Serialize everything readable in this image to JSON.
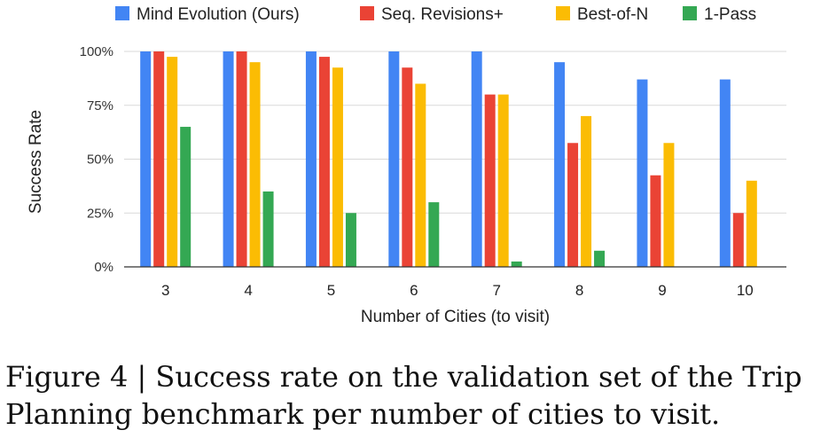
{
  "chart_data": {
    "type": "bar",
    "categories": [
      "3",
      "4",
      "5",
      "6",
      "7",
      "8",
      "9",
      "10"
    ],
    "series": [
      {
        "name": "Mind Evolution (Ours)",
        "color": "#4285F4",
        "values": [
          100,
          100,
          100,
          100,
          100,
          95,
          87,
          87
        ]
      },
      {
        "name": "Seq. Revisions+",
        "color": "#EA4335",
        "values": [
          100,
          100,
          97.5,
          92.5,
          80,
          57.5,
          42.5,
          25
        ]
      },
      {
        "name": "Best-of-N",
        "color": "#FBBC04",
        "values": [
          97.5,
          95,
          92.5,
          85,
          80,
          70,
          57.5,
          40
        ]
      },
      {
        "name": "1-Pass",
        "color": "#34A853",
        "values": [
          65,
          35,
          25,
          30,
          2.5,
          7.5,
          0,
          0
        ]
      }
    ],
    "yticks": [
      "0%",
      "25%",
      "50%",
      "75%",
      "100%"
    ],
    "ylim": [
      0,
      100
    ],
    "xlabel": "Number of Cities (to visit)",
    "ylabel": "Success Rate",
    "grid": true,
    "legend": "top"
  },
  "caption": {
    "line1": "Figure 4 | Success rate on the validation set of the Trip",
    "line2": "Planning benchmark per number of cities to visit."
  }
}
